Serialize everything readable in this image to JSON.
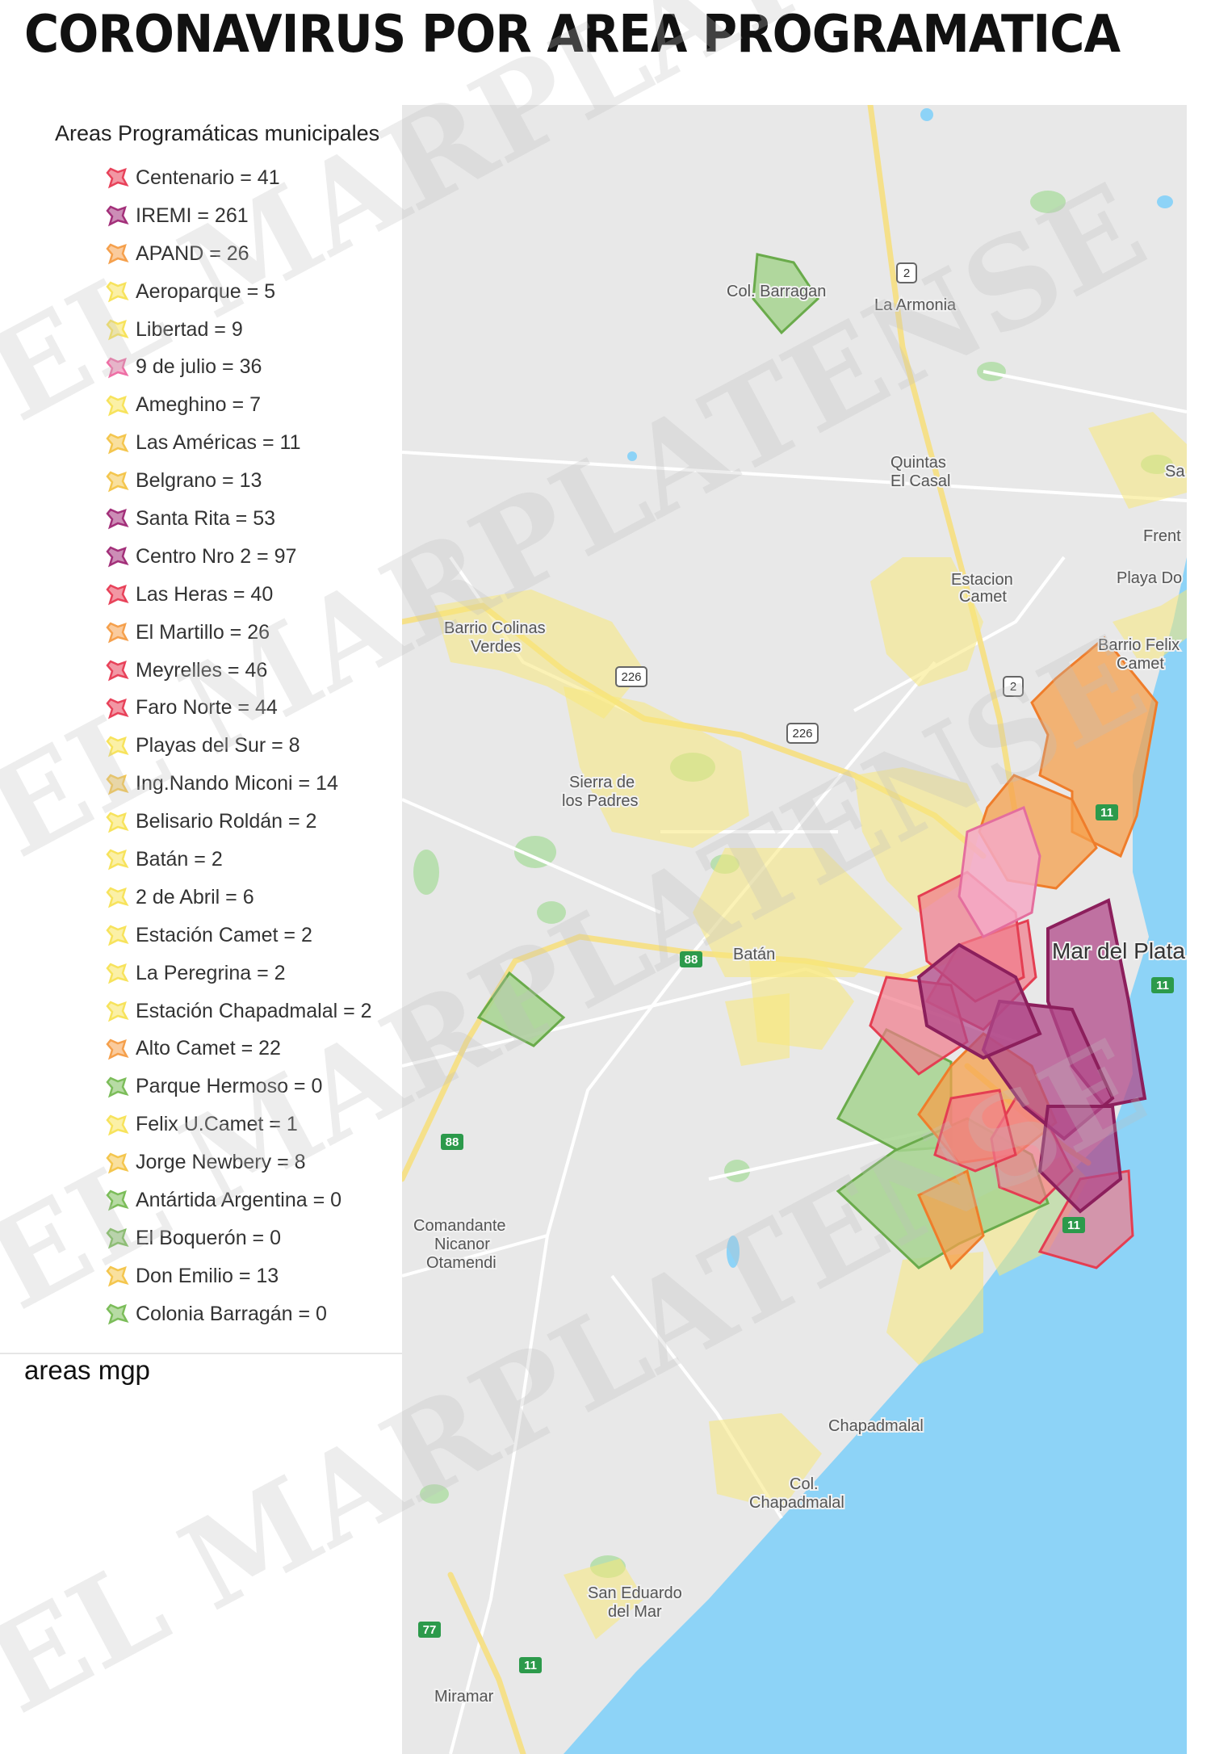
{
  "title": "CORONAVIRUS POR AREA PROGRAMATICA",
  "legend": {
    "title": "Areas Programáticas municipales",
    "items": [
      {
        "label": "Centenario = 41",
        "color": "#e8425a"
      },
      {
        "label": "IREMI = 261",
        "color": "#a3307a"
      },
      {
        "label": "APAND = 26",
        "color": "#f5a04c"
      },
      {
        "label": "Aeroparque = 5",
        "color": "#f7e35c"
      },
      {
        "label": "Libertad = 9",
        "color": "#f7e35c"
      },
      {
        "label": "9 de julio = 36",
        "color": "#ee6fa5"
      },
      {
        "label": "Ameghino = 7",
        "color": "#f7e35c"
      },
      {
        "label": "Las Américas = 11",
        "color": "#f4c64e"
      },
      {
        "label": "Belgrano = 13",
        "color": "#f4c64e"
      },
      {
        "label": "Santa Rita = 53",
        "color": "#a3307a"
      },
      {
        "label": "Centro Nro 2 = 97",
        "color": "#a3307a"
      },
      {
        "label": "Las Heras = 40",
        "color": "#e8425a"
      },
      {
        "label": "El Martillo = 26",
        "color": "#f5a04c"
      },
      {
        "label": "Meyrelles = 46",
        "color": "#e8425a"
      },
      {
        "label": "Faro Norte = 44",
        "color": "#e8425a"
      },
      {
        "label": "Playas del Sur = 8",
        "color": "#f7e35c"
      },
      {
        "label": "Ing.Nando Miconi = 14",
        "color": "#f4c64e"
      },
      {
        "label": "Belisario Roldán = 2",
        "color": "#f7e35c"
      },
      {
        "label": "Batán = 2",
        "color": "#f7e35c"
      },
      {
        "label": "2 de Abril = 6",
        "color": "#f7e35c"
      },
      {
        "label": "Estación Camet = 2",
        "color": "#f7e35c"
      },
      {
        "label": "La Peregrina = 2",
        "color": "#f7e35c"
      },
      {
        "label": "Estación Chapadmalal = 2",
        "color": "#f7e35c"
      },
      {
        "label": "Alto Camet = 22",
        "color": "#f5a04c"
      },
      {
        "label": "Parque Hermoso = 0",
        "color": "#7cbd5a"
      },
      {
        "label": "Felix U.Camet = 1",
        "color": "#f7e35c"
      },
      {
        "label": "Jorge Newbery = 8",
        "color": "#f4c64e"
      },
      {
        "label": "Antártida Argentina = 0",
        "color": "#7cbd5a"
      },
      {
        "label": "El Boquerón = 0",
        "color": "#7cbd5a"
      },
      {
        "label": "Don Emilio = 13",
        "color": "#f4c64e"
      },
      {
        "label": "Colonia Barragán = 0",
        "color": "#7cbd5a"
      }
    ]
  },
  "section_label": "areas mgp",
  "map": {
    "places": {
      "col_barragan": "Col. Barragan",
      "la_armonia": "La Armonia",
      "quintas_1": "Quintas",
      "quintas_2": "El Casal",
      "estacion_camet_1": "Estacion",
      "estacion_camet_2": "Camet",
      "playa_do": "Playa Do",
      "frent": "Frent",
      "sa": "Sa",
      "barrio_colinas_1": "Barrio Colinas",
      "barrio_colinas_2": "Verdes",
      "barrio_felix_1": "Barrio Felix",
      "barrio_felix_2": "Camet",
      "sierra_1": "Sierra de",
      "sierra_2": "los Padres",
      "batan": "Batán",
      "mar_del_plata": "Mar del Plata",
      "comandante_1": "Comandante",
      "comandante_2": "Nicanor",
      "comandante_3": "Otamendi",
      "chapadmalal": "Chapadmalal",
      "col_chapadmalal_1": "Col.",
      "col_chapadmalal_2": "Chapadmalal",
      "san_eduardo_1": "San Eduardo",
      "san_eduardo_2": "del Mar",
      "miramar": "Miramar"
    },
    "routes": {
      "r2": "2",
      "r226": "226",
      "r11": "11",
      "r88": "88",
      "r77": "77"
    },
    "colors": {
      "land": "#e8e8e8",
      "sea": "#8dd3f7",
      "road_major": "#f5e08a",
      "road_minor": "#ffffff",
      "green_area": "#b9dfb0"
    }
  },
  "watermark": "EL MARPLATENSE"
}
